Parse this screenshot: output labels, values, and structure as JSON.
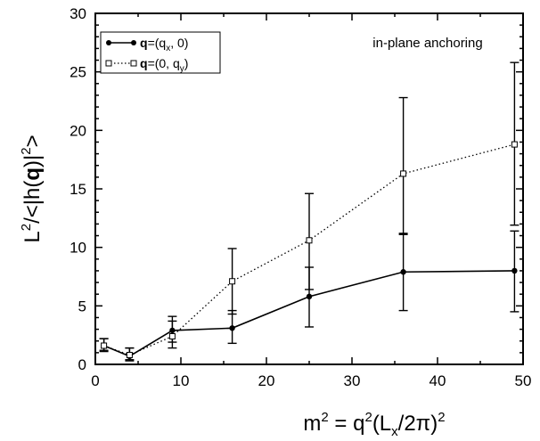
{
  "chart_data": {
    "type": "line",
    "xlabel_parts": {
      "m": "m",
      "two": "2",
      "eq": " = q",
      "Lx": "(L",
      "x": "x",
      "pi": "/2π)",
      "two2": "2"
    },
    "ylabel_parts": {
      "L": "L",
      "two": "2",
      "rest": "/<|h(",
      "q": "q",
      "close": ")|",
      "two2": "2",
      "gt": ">"
    },
    "annotation": "in-plane anchoring",
    "xlim": [
      0,
      50
    ],
    "ylim": [
      0,
      30
    ],
    "xticks": [
      "0",
      "10",
      "20",
      "30",
      "40",
      "50"
    ],
    "yticks": [
      "0",
      "5",
      "10",
      "15",
      "20",
      "25",
      "30"
    ],
    "x": [
      1,
      4,
      9,
      16,
      25,
      36,
      49
    ],
    "series": [
      {
        "name": "q=(qx, 0)",
        "legend_parts": {
          "q": "q",
          "eq": "=(q",
          "sub": "x",
          "tail": ", 0)"
        },
        "style": "solid",
        "marker": "filled-circle",
        "values": [
          1.6,
          0.7,
          2.9,
          3.1,
          5.8,
          7.9,
          8.0
        ],
        "err_low": [
          1.2,
          0.4,
          1.9,
          1.8,
          3.2,
          4.6,
          4.5
        ],
        "err_high": [
          2.2,
          1.4,
          4.1,
          4.6,
          8.3,
          11.2,
          11.4
        ]
      },
      {
        "name": "q=(0, qy)",
        "legend_parts": {
          "q": "q",
          "eq": "=(0, q",
          "sub": "y",
          "tail": ")"
        },
        "style": "dotted",
        "marker": "open-square",
        "values": [
          1.6,
          0.8,
          2.4,
          7.1,
          10.6,
          16.3,
          18.8
        ],
        "err_low": [
          1.1,
          0.3,
          1.4,
          4.3,
          6.4,
          11.1,
          11.9
        ],
        "err_high": [
          2.2,
          1.4,
          3.7,
          9.9,
          14.6,
          22.8,
          25.8
        ]
      }
    ],
    "grid": false,
    "legend_position": "top-left"
  }
}
